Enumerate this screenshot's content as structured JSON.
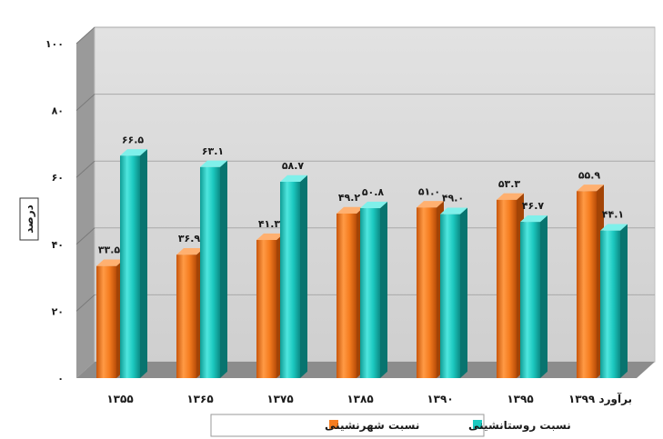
{
  "chart_data": {
    "type": "bar",
    "ylabel": "درصد",
    "ylim": [
      0,
      100
    ],
    "yticks": [
      0,
      20,
      40,
      60,
      80,
      100
    ],
    "ytick_labels": [
      "۰",
      "۲۰",
      "۴۰",
      "۶۰",
      "۸۰",
      "۱۰۰"
    ],
    "grid": true,
    "legend_position": "bottom",
    "categories": [
      "۱۳۵۵",
      "۱۳۶۵",
      "۱۳۷۵",
      "۱۳۸۵",
      "۱۳۹۰",
      "۱۳۹۵",
      "برآورد ۱۳۹۹"
    ],
    "series": [
      {
        "name": "نسبت شهرنشینی",
        "color": "#f57c1f",
        "values": [
          33.5,
          36.9,
          41.3,
          49.2,
          51.0,
          53.3,
          55.9
        ],
        "labels": [
          "۳۳.۵",
          "۳۶.۹",
          "۴۱.۳",
          "۴۹.۲",
          "۵۱.۰",
          "۵۳.۳",
          "۵۵.۹"
        ]
      },
      {
        "name": "نسبت روستانشینی",
        "color": "#1cc9c0",
        "values": [
          66.5,
          63.1,
          58.7,
          50.8,
          49.0,
          46.7,
          44.1
        ],
        "labels": [
          "۶۶.۵",
          "۶۳.۱",
          "۵۸.۷",
          "۵۰.۸",
          "۴۹.۰",
          "۴۶.۷",
          "۴۴.۱"
        ]
      }
    ]
  }
}
